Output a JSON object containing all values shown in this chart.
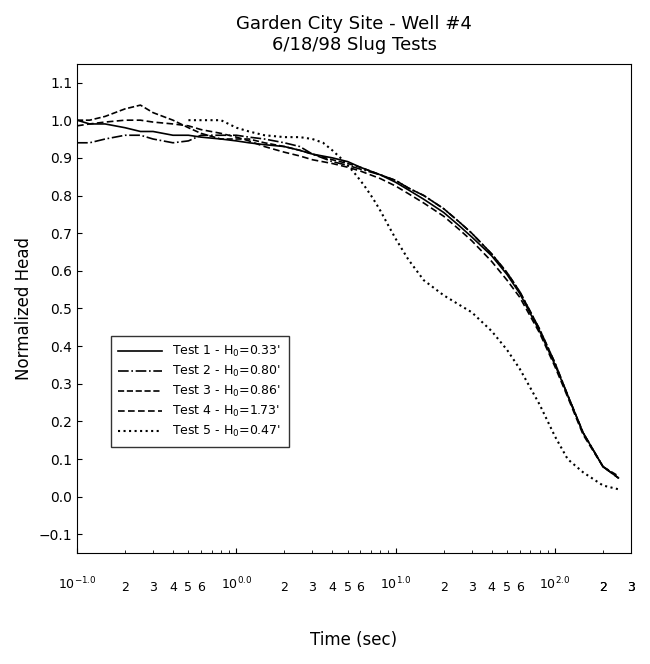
{
  "title_line1": "Garden City Site - Well #4",
  "title_line2": "6/18/98 Slug Tests",
  "xlabel": "Time (sec)",
  "ylabel": "Normalized Head",
  "xlim": [
    0.1,
    300
  ],
  "ylim": [
    -0.15,
    1.15
  ],
  "yticks": [
    -0.1,
    0.0,
    0.1,
    0.2,
    0.3,
    0.4,
    0.5,
    0.6,
    0.7,
    0.8,
    0.9,
    1.0,
    1.1
  ],
  "background_color": "#ffffff",
  "legend_labels": [
    "Test 1 - H$_0$=0.33'",
    "Test 2 - H$_0$=0.80'",
    "Test 3 - H$_0$=0.86'",
    "Test 4 - H$_0$=1.73'",
    "Test 5 - H$_0$=0.47'"
  ],
  "test1_x": [
    0.1,
    0.12,
    0.15,
    0.2,
    0.25,
    0.3,
    0.4,
    0.5,
    0.6,
    0.8,
    1.0,
    1.2,
    1.5,
    2.0,
    2.5,
    3.0,
    4.0,
    5.0,
    6.0,
    8.0,
    10.0,
    12.0,
    15.0,
    20.0,
    25.0,
    30.0,
    40.0,
    50.0,
    60.0,
    80.0,
    100.0,
    120.0,
    150.0,
    200.0,
    250.0
  ],
  "test1_y": [
    1.0,
    0.99,
    0.99,
    0.98,
    0.97,
    0.97,
    0.96,
    0.96,
    0.955,
    0.95,
    0.945,
    0.94,
    0.935,
    0.93,
    0.92,
    0.91,
    0.9,
    0.89,
    0.875,
    0.855,
    0.835,
    0.815,
    0.79,
    0.755,
    0.72,
    0.69,
    0.64,
    0.59,
    0.54,
    0.44,
    0.35,
    0.27,
    0.17,
    0.08,
    0.05
  ],
  "test2_x": [
    0.1,
    0.12,
    0.15,
    0.2,
    0.25,
    0.3,
    0.4,
    0.5,
    0.6,
    0.8,
    1.0,
    1.2,
    1.5,
    2.0,
    2.5,
    3.0,
    4.0,
    5.0,
    6.0,
    8.0,
    10.0,
    12.0,
    15.0,
    20.0,
    25.0,
    30.0,
    40.0,
    50.0,
    60.0,
    80.0,
    100.0,
    120.0,
    150.0,
    200.0,
    250.0
  ],
  "test2_y": [
    0.94,
    0.94,
    0.95,
    0.96,
    0.96,
    0.95,
    0.94,
    0.945,
    0.96,
    0.96,
    0.96,
    0.955,
    0.95,
    0.94,
    0.93,
    0.91,
    0.89,
    0.88,
    0.87,
    0.855,
    0.84,
    0.82,
    0.8,
    0.765,
    0.73,
    0.7,
    0.645,
    0.595,
    0.545,
    0.445,
    0.355,
    0.27,
    0.17,
    0.08,
    0.05
  ],
  "test3_x": [
    0.1,
    0.12,
    0.15,
    0.2,
    0.25,
    0.3,
    0.4,
    0.5,
    0.6,
    0.8,
    1.0,
    1.2,
    1.5,
    2.0,
    2.5,
    3.0,
    4.0,
    5.0,
    6.0,
    8.0,
    10.0,
    12.0,
    15.0,
    20.0,
    25.0,
    30.0,
    40.0,
    50.0,
    60.0,
    80.0,
    100.0,
    120.0,
    150.0,
    200.0,
    250.0
  ],
  "test3_y": [
    1.0,
    1.0,
    1.01,
    1.03,
    1.04,
    1.02,
    1.0,
    0.98,
    0.965,
    0.95,
    0.95,
    0.95,
    0.94,
    0.93,
    0.92,
    0.91,
    0.895,
    0.885,
    0.875,
    0.855,
    0.84,
    0.82,
    0.8,
    0.765,
    0.73,
    0.7,
    0.645,
    0.595,
    0.545,
    0.445,
    0.355,
    0.27,
    0.17,
    0.08,
    0.055
  ],
  "test4_x": [
    0.1,
    0.12,
    0.15,
    0.2,
    0.25,
    0.3,
    0.4,
    0.5,
    0.6,
    0.8,
    1.0,
    1.2,
    1.5,
    2.0,
    2.5,
    3.0,
    4.0,
    5.0,
    6.0,
    8.0,
    10.0,
    12.0,
    15.0,
    20.0,
    25.0,
    30.0,
    40.0,
    50.0,
    60.0,
    80.0,
    100.0,
    120.0,
    150.0,
    200.0,
    250.0
  ],
  "test4_y": [
    0.985,
    0.99,
    0.995,
    1.0,
    1.0,
    0.995,
    0.99,
    0.985,
    0.975,
    0.965,
    0.955,
    0.945,
    0.93,
    0.915,
    0.905,
    0.895,
    0.885,
    0.875,
    0.865,
    0.845,
    0.825,
    0.805,
    0.78,
    0.745,
    0.71,
    0.68,
    0.625,
    0.575,
    0.53,
    0.435,
    0.345,
    0.265,
    0.165,
    0.08,
    0.05
  ],
  "test5_x": [
    0.5,
    0.6,
    0.8,
    1.0,
    1.2,
    1.5,
    2.0,
    2.5,
    3.0,
    3.5,
    4.0,
    4.5,
    5.0,
    5.5,
    6.0,
    6.5,
    7.0,
    7.5,
    8.0,
    9.0,
    10.0,
    12.0,
    15.0,
    20.0,
    25.0,
    30.0,
    40.0,
    50.0,
    60.0,
    80.0,
    100.0,
    120.0,
    150.0,
    200.0,
    250.0
  ],
  "test5_y": [
    1.0,
    1.0,
    1.0,
    0.98,
    0.97,
    0.96,
    0.955,
    0.955,
    0.95,
    0.94,
    0.92,
    0.9,
    0.88,
    0.86,
    0.84,
    0.82,
    0.8,
    0.78,
    0.76,
    0.72,
    0.685,
    0.63,
    0.575,
    0.535,
    0.51,
    0.49,
    0.44,
    0.39,
    0.34,
    0.245,
    0.16,
    0.1,
    0.065,
    0.03,
    0.02
  ]
}
